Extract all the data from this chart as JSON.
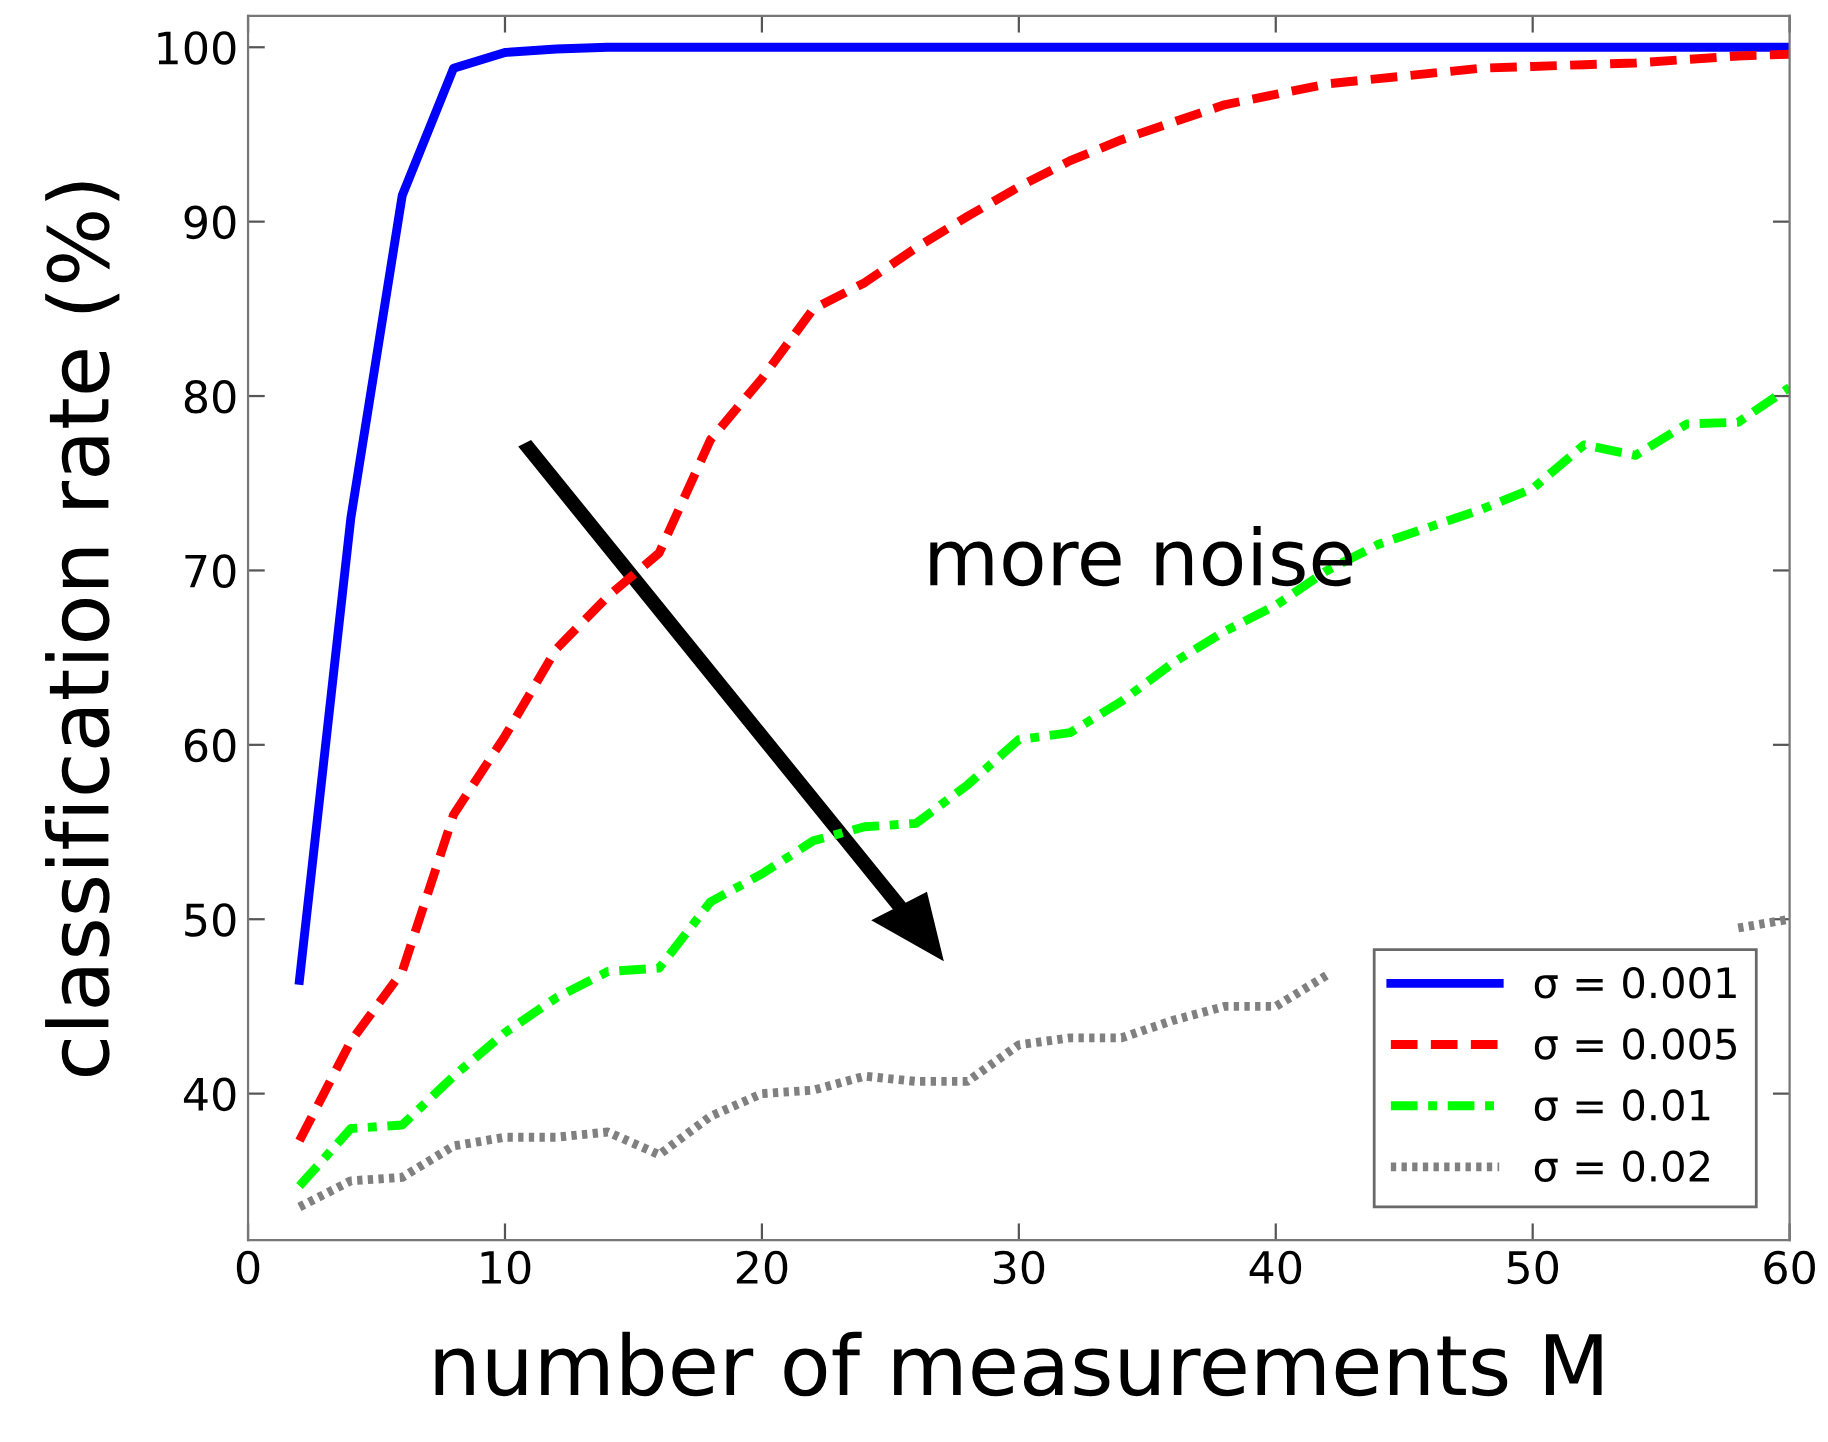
{
  "chart_data": {
    "type": "line",
    "xlabel": "number of measurements M",
    "ylabel": "classification rate (%)",
    "x": [
      2,
      4,
      6,
      8,
      10,
      12,
      14,
      16,
      18,
      20,
      22,
      24,
      26,
      28,
      30,
      32,
      34,
      36,
      38,
      40,
      42,
      44,
      46,
      48,
      50,
      52,
      54,
      56,
      58,
      60
    ],
    "series": [
      {
        "name": "σ = 0.001",
        "color": "#0000ff",
        "line_style": "solid",
        "values": [
          46.5,
          73,
          91.5,
          98.8,
          99.7,
          99.9,
          100,
          100,
          100,
          100,
          100,
          100,
          100,
          100,
          100,
          100,
          100,
          100,
          100,
          100,
          100,
          100,
          100,
          100,
          100,
          100,
          100,
          100,
          100,
          100
        ]
      },
      {
        "name": "σ = 0.005",
        "color": "#ff0000",
        "line_style": "dashed",
        "values": [
          37.3,
          43,
          47,
          56,
          60.5,
          65.5,
          68.5,
          71,
          77.5,
          81,
          85,
          86.5,
          88.5,
          90.3,
          92,
          93.5,
          94.7,
          95.7,
          96.7,
          97.3,
          97.9,
          98.2,
          98.5,
          98.8,
          98.9,
          99.0,
          99.1,
          99.3,
          99.5,
          99.6
        ]
      },
      {
        "name": "σ = 0.01",
        "color": "#00ff00",
        "line_style": "dashdot",
        "values": [
          34.7,
          38,
          38.2,
          41,
          43.5,
          45.5,
          47,
          47.2,
          51,
          52.6,
          54.5,
          55.3,
          55.5,
          57.7,
          60.3,
          60.7,
          62.5,
          64.7,
          66.5,
          68,
          70,
          71.5,
          72.5,
          73.5,
          74.7,
          77.2,
          76.6,
          78.4,
          78.5,
          80.5
        ]
      },
      {
        "name": "σ = 0.02",
        "color": "#808080",
        "line_style": "dotted",
        "values": [
          33.5,
          35,
          35.2,
          37,
          37.5,
          37.5,
          37.8,
          36.5,
          38.7,
          40,
          40.2,
          41,
          40.7,
          40.7,
          42.8,
          43.2,
          43.2,
          44.2,
          45,
          45,
          46.8,
          null,
          null,
          null,
          null,
          null,
          null,
          null,
          49.5,
          50
        ]
      }
    ],
    "xlim": [
      0,
      60
    ],
    "xticks": [
      0,
      10,
      20,
      30,
      40,
      50,
      60
    ],
    "ylim": [
      31.6,
      101.8
    ],
    "yticks": [
      40,
      50,
      60,
      70,
      80,
      90,
      100
    ],
    "annotations": [
      "more noise"
    ],
    "legend": "bottom right",
    "grid": false,
    "marker": "none"
  }
}
